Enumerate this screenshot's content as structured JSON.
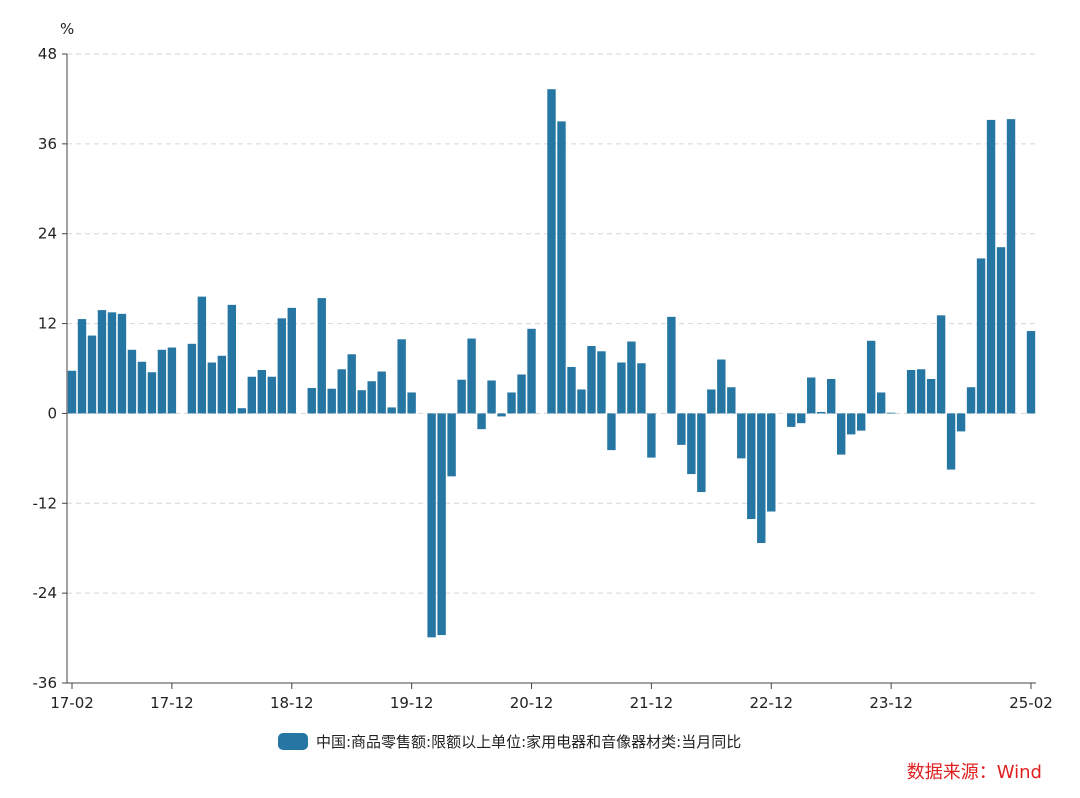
{
  "chart_data": {
    "type": "bar",
    "unit": "%",
    "ylim": [
      -36,
      48
    ],
    "yticks": [
      -36,
      -24,
      -12,
      0,
      12,
      24,
      36,
      48
    ],
    "grid": true,
    "x_tick_labels": [
      "17-02",
      "17-12",
      "18-12",
      "19-12",
      "20-12",
      "21-12",
      "22-12",
      "23-12",
      "25-02"
    ],
    "x_tick_index": [
      0,
      10,
      22,
      34,
      46,
      58,
      70,
      82,
      96
    ],
    "series": [
      {
        "name": "中国:商品零售额:限额以上单位:家用电器和音像器材类:当月同比",
        "color": "#2676a4",
        "values": [
          5.7,
          12.6,
          10.4,
          13.8,
          13.5,
          13.3,
          8.5,
          6.9,
          5.5,
          8.5,
          8.8,
          null,
          9.3,
          15.6,
          6.8,
          7.7,
          14.5,
          0.7,
          4.9,
          5.8,
          4.9,
          12.7,
          14.1,
          null,
          3.4,
          15.4,
          3.3,
          5.9,
          7.9,
          3.1,
          4.3,
          5.6,
          0.8,
          9.9,
          2.8,
          null,
          -29.9,
          -29.6,
          -8.4,
          4.5,
          10.0,
          -2.1,
          4.4,
          -0.4,
          2.8,
          5.2,
          11.3,
          null,
          43.3,
          39.0,
          6.2,
          3.2,
          9.0,
          8.3,
          -4.9,
          6.8,
          9.6,
          6.7,
          -5.9,
          null,
          12.9,
          -4.2,
          -8.1,
          -10.5,
          3.2,
          7.2,
          3.5,
          -6.0,
          -14.1,
          -17.3,
          -13.1,
          null,
          -1.8,
          -1.3,
          4.8,
          0.2,
          4.6,
          -5.5,
          -2.8,
          -2.3,
          9.7,
          2.8,
          0.1,
          null,
          5.8,
          5.9,
          4.6,
          13.1,
          -7.5,
          -2.4,
          3.5,
          20.7,
          39.2,
          22.2,
          39.3,
          null,
          11.0
        ]
      }
    ]
  },
  "legend": {
    "label": "中国:商品零售额:限额以上单位:家用电器和音像器材类:当月同比"
  },
  "source": {
    "text": "数据来源：Wind",
    "color": "#e02020"
  }
}
